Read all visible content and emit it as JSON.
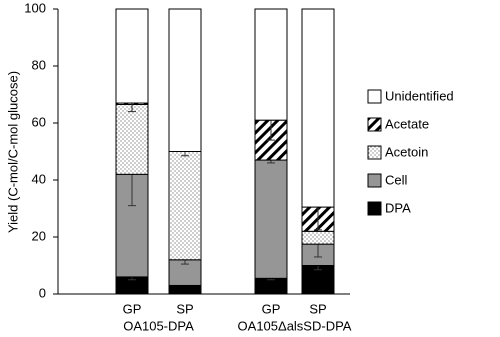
{
  "chart_data": {
    "type": "stacked-bar",
    "y_label": "Yield (C-mol/C-mol glucose)",
    "categories": [
      "GP",
      "SP",
      "GP",
      "SP"
    ],
    "groups": [
      "OA105-DPA",
      "OA105ΔalsSD-DPA"
    ],
    "ylim": [
      0,
      100
    ],
    "yticks": [
      0,
      20,
      40,
      60,
      80,
      100
    ],
    "series": [
      {
        "name": "DPA",
        "color": "#000000",
        "pattern": "solid",
        "values": [
          6,
          3,
          5.5,
          10
        ],
        "errors": [
          1,
          null,
          0.5,
          1.5
        ]
      },
      {
        "name": "Cell",
        "color": "#969696",
        "pattern": "solid",
        "values": [
          36,
          9,
          41.5,
          7.5
        ],
        "errors": [
          11,
          1.5,
          1,
          4.5
        ]
      },
      {
        "name": "Acetoin",
        "color": "#ffffff",
        "pattern": "dots",
        "values": [
          24.5,
          38,
          0,
          4.5
        ],
        "errors": [
          null,
          1.5,
          null,
          null
        ]
      },
      {
        "name": "Acetate",
        "color": "#ffffff",
        "pattern": "hatch",
        "values": [
          0.5,
          0,
          14,
          8.5
        ],
        "errors": [
          3,
          null,
          7,
          8
        ]
      },
      {
        "name": "Unidentified",
        "color": "#ffffff",
        "pattern": "solid",
        "values": [
          33,
          50,
          39,
          69.5
        ]
      }
    ]
  }
}
